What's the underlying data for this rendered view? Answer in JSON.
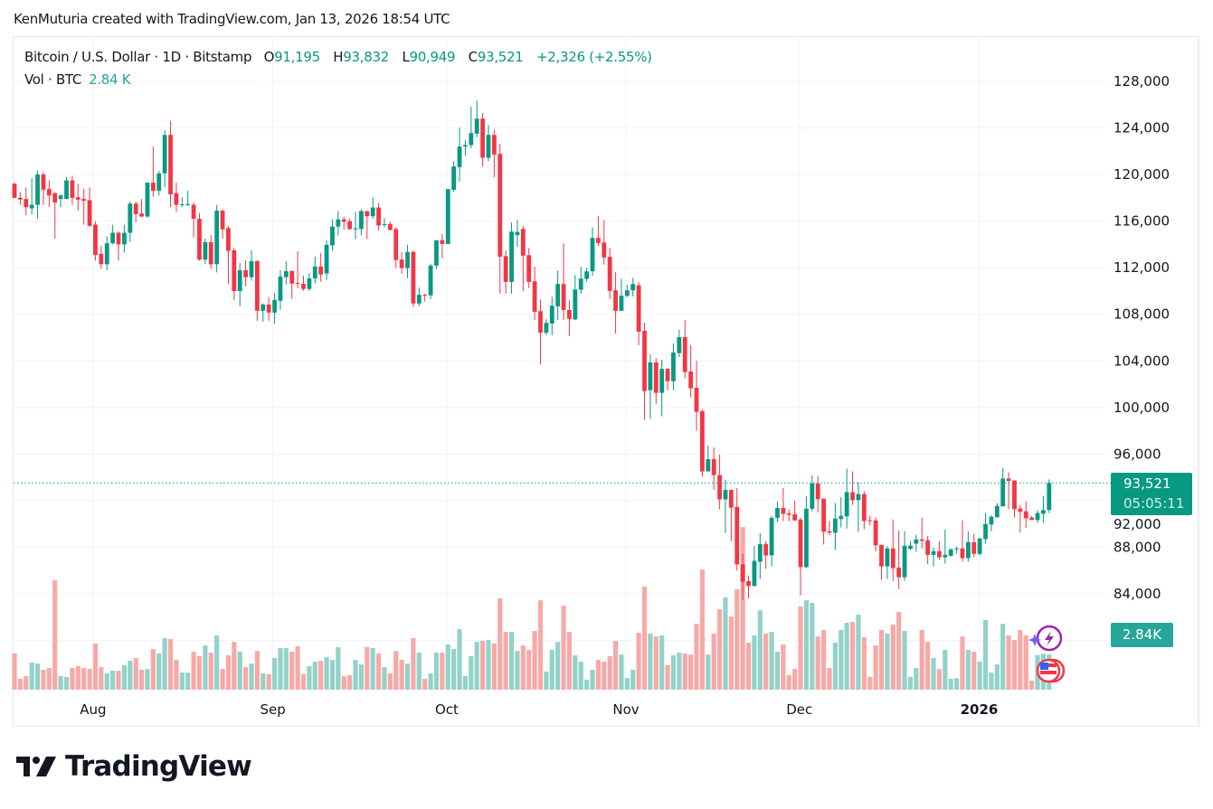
{
  "attribution": "KenMuturia created with TradingView.com, Jan 13, 2026 18:54 UTC",
  "legend": {
    "symbol": "Bitcoin / U.S. Dollar · 1D · Bitstamp",
    "open_label": "O",
    "open": "91,195",
    "high_label": "H",
    "high": "93,832",
    "low_label": "L",
    "low": "90,949",
    "close_label": "C",
    "close": "93,521",
    "change": "+2,326 (+2.55%)",
    "vol_label": "Vol · BTC",
    "vol": "2.84 K"
  },
  "price_scale": {
    "last_price": "93,521",
    "countdown": "05:05:11",
    "last_volume": "2.84K"
  },
  "logo": "TradingView",
  "icons": [
    "lightning-event-icon",
    "us-flag-economic-event-icon"
  ],
  "colors": {
    "up": "#089981",
    "down": "#f23645",
    "volume_up": "#92d2c9",
    "volume_down": "#f7a9a7",
    "grid": "#f0f3fa"
  },
  "chart_data": {
    "type": "candlestick",
    "title": "Bitcoin / U.S. Dollar · 1D · Bitstamp",
    "ylim": [
      80000,
      128000
    ],
    "grid": true,
    "y_ticks": [
      "128,000",
      "124,000",
      "120,000",
      "116,000",
      "112,000",
      "108,000",
      "104,000",
      "100,000",
      "96,000",
      "92,000",
      "88,000",
      "84,000"
    ],
    "x_ticks": [
      {
        "label": "Aug",
        "index": 13.6
      },
      {
        "label": "Sep",
        "index": 44.7
      },
      {
        "label": "Oct",
        "index": 74.8
      },
      {
        "label": "Nov",
        "index": 105.8
      },
      {
        "label": "Dec",
        "index": 135.8
      },
      {
        "label": "2026",
        "index": 166.9,
        "bold": true
      }
    ],
    "columns": [
      "open",
      "high",
      "low",
      "close",
      "volume_k_btc"
    ],
    "candles": [
      [
        119200,
        119300,
        118000,
        118000,
        2.92
      ],
      [
        118000,
        118500,
        117400,
        117850,
        0.88
      ],
      [
        117900,
        118900,
        116500,
        117200,
        1.09
      ],
      [
        117100,
        119700,
        116600,
        117400,
        2.19
      ],
      [
        117400,
        120300,
        116200,
        120000,
        2.11
      ],
      [
        120000,
        120200,
        117400,
        118700,
        1.61
      ],
      [
        118750,
        119500,
        117200,
        118200,
        1.75
      ],
      [
        118400,
        118500,
        114500,
        117600,
        8.83
      ],
      [
        117900,
        118300,
        117200,
        118200,
        1.09
      ],
      [
        117900,
        119800,
        117900,
        119500,
        1.02
      ],
      [
        119500,
        119900,
        117400,
        118000,
        1.75
      ],
      [
        118050,
        119200,
        116900,
        117850,
        1.9
      ],
      [
        117900,
        118800,
        115700,
        117750,
        1.75
      ],
      [
        117800,
        118900,
        115500,
        115600,
        1.67
      ],
      [
        115700,
        116000,
        112600,
        113100,
        3.72
      ],
      [
        113200,
        113900,
        111900,
        112300,
        1.82
      ],
      [
        112300,
        114700,
        111800,
        114100,
        1.31
      ],
      [
        114100,
        115700,
        114000,
        115000,
        1.54
      ],
      [
        115000,
        115100,
        112600,
        114000,
        1.54
      ],
      [
        114000,
        115700,
        113300,
        115000,
        1.98
      ],
      [
        115000,
        117700,
        114200,
        117500,
        2.34
      ],
      [
        117500,
        117700,
        115900,
        116600,
        2.55
      ],
      [
        116650,
        117900,
        116350,
        116400,
        1.61
      ],
      [
        116400,
        119300,
        116300,
        119300,
        1.67
      ],
      [
        119300,
        122400,
        118100,
        118600,
        3.28
      ],
      [
        118600,
        120300,
        118200,
        120100,
        2.92
      ],
      [
        120100,
        123800,
        118900,
        123400,
        4.16
      ],
      [
        123400,
        124600,
        117200,
        118300,
        4.09
      ],
      [
        118400,
        119300,
        116800,
        117400,
        2.4
      ],
      [
        117400,
        118050,
        117200,
        117450,
        1.38
      ],
      [
        117400,
        118600,
        117300,
        117450,
        1.38
      ],
      [
        117400,
        117600,
        114600,
        116200,
        3.07
      ],
      [
        116200,
        116700,
        112600,
        112700,
        2.71
      ],
      [
        112700,
        114500,
        112300,
        114200,
        3.57
      ],
      [
        114200,
        114800,
        111900,
        112300,
        2.99
      ],
      [
        112300,
        117400,
        111600,
        116900,
        4.38
      ],
      [
        116900,
        117000,
        114500,
        115300,
        1.67
      ],
      [
        115400,
        115600,
        110600,
        113450,
        2.77
      ],
      [
        113500,
        113700,
        109240,
        110000,
        3.86
      ],
      [
        110000,
        112400,
        108700,
        111790,
        3.07
      ],
      [
        111790,
        112640,
        110410,
        111190,
        1.82
      ],
      [
        111190,
        113500,
        110880,
        112570,
        2.11
      ],
      [
        112570,
        112640,
        107450,
        108300,
        3.13
      ],
      [
        108300,
        108930,
        107370,
        108850,
        1.31
      ],
      [
        108850,
        109470,
        107450,
        108150,
        1.25
      ],
      [
        108150,
        109840,
        107210,
        109240,
        2.55
      ],
      [
        109160,
        111790,
        108380,
        111240,
        3.36
      ],
      [
        111190,
        112570,
        110560,
        111710,
        3.36
      ],
      [
        111710,
        111790,
        109320,
        110640,
        3.07
      ],
      [
        110700,
        113430,
        110250,
        110640,
        3.5
      ],
      [
        110620,
        111320,
        110020,
        110180,
        1.25
      ],
      [
        110180,
        111550,
        110020,
        111080,
        1.9
      ],
      [
        111080,
        112960,
        110640,
        112100,
        2.26
      ],
      [
        112100,
        113270,
        110800,
        111420,
        2.34
      ],
      [
        111500,
        114360,
        110960,
        113970,
        2.63
      ],
      [
        113920,
        116150,
        113450,
        115530,
        2.4
      ],
      [
        115530,
        116860,
        114780,
        116150,
        3.44
      ],
      [
        116150,
        116390,
        115250,
        115940,
        1.09
      ],
      [
        115990,
        116230,
        115250,
        115320,
        1.17
      ],
      [
        115300,
        116780,
        114460,
        115380,
        2.4
      ],
      [
        115320,
        117000,
        114780,
        116860,
        2.04
      ],
      [
        116860,
        116860,
        114460,
        116420,
        3.44
      ],
      [
        116420,
        118030,
        116210,
        117170,
        3.36
      ],
      [
        117170,
        117560,
        115170,
        115630,
        2.92
      ],
      [
        115690,
        116260,
        115480,
        115740,
        1.82
      ],
      [
        115760,
        115950,
        115170,
        115250,
        1.31
      ],
      [
        115320,
        115480,
        111970,
        112670,
        3.13
      ],
      [
        112700,
        113350,
        111500,
        111970,
        2.4
      ],
      [
        111970,
        113970,
        111110,
        113350,
        2.11
      ],
      [
        113350,
        113500,
        108620,
        108930,
        4.16
      ],
      [
        108930,
        110300,
        108690,
        109680,
        2.99
      ],
      [
        109680,
        109760,
        109080,
        109630,
        0.88
      ],
      [
        109630,
        112330,
        109300,
        112180,
        1.31
      ],
      [
        112180,
        114360,
        111900,
        114360,
        2.99
      ],
      [
        114370,
        114890,
        112800,
        114040,
        2.99
      ],
      [
        114040,
        118750,
        114040,
        118750,
        3.65
      ],
      [
        118690,
        121150,
        118490,
        120690,
        3.28
      ],
      [
        120640,
        124030,
        119400,
        122400,
        4.89
      ],
      [
        122400,
        122960,
        121620,
        122530,
        1.09
      ],
      [
        122530,
        125810,
        122270,
        123560,
        2.71
      ],
      [
        123510,
        126350,
        123200,
        124800,
        3.86
      ],
      [
        124800,
        125270,
        120710,
        121440,
        3.94
      ],
      [
        121440,
        124260,
        121160,
        123405,
        4.01
      ],
      [
        123405,
        123870,
        119780,
        121720,
        3.72
      ],
      [
        121780,
        122630,
        109770,
        112950,
        7.37
      ],
      [
        113000,
        113470,
        109770,
        110780,
        4.67
      ],
      [
        110780,
        115880,
        109770,
        115100,
        4.67
      ],
      [
        114800,
        116110,
        113800,
        115080,
        3.13
      ],
      [
        115330,
        115570,
        109980,
        113030,
        3.57
      ],
      [
        113080,
        113700,
        110240,
        110780,
        3.21
      ],
      [
        110830,
        112070,
        107520,
        108220,
        4.74
      ],
      [
        108270,
        109280,
        103690,
        106430,
        7.22
      ],
      [
        106430,
        107570,
        106200,
        107260,
        1.46
      ],
      [
        107210,
        109510,
        106200,
        108740,
        3.21
      ],
      [
        108690,
        111760,
        107520,
        110600,
        3.86
      ],
      [
        110600,
        114090,
        107520,
        108370,
        6.78
      ],
      [
        108370,
        109200,
        106120,
        107600,
        4.67
      ],
      [
        107560,
        111370,
        107520,
        110130,
        2.77
      ],
      [
        110110,
        112070,
        109770,
        111060,
        2.26
      ],
      [
        111040,
        111990,
        110780,
        111690,
        0.81
      ],
      [
        111690,
        115490,
        111320,
        114560,
        1.61
      ],
      [
        114560,
        116420,
        113880,
        114120,
        2.4
      ],
      [
        114170,
        116110,
        112260,
        112880,
        2.26
      ],
      [
        112930,
        113700,
        109310,
        110010,
        2.71
      ],
      [
        110060,
        111610,
        106360,
        108300,
        3.94
      ],
      [
        108300,
        111060,
        108300,
        109590,
        2.84
      ],
      [
        109590,
        110520,
        109460,
        110060,
        0.94
      ],
      [
        110060,
        111140,
        109540,
        110600,
        1.61
      ],
      [
        110500,
        110760,
        105350,
        106510,
        4.59
      ],
      [
        106580,
        107280,
        98930,
        101410,
        8.31
      ],
      [
        101490,
        104560,
        99010,
        103870,
        4.53
      ],
      [
        103870,
        104250,
        100330,
        101260,
        4.3
      ],
      [
        101260,
        104100,
        99240,
        103320,
        4.38
      ],
      [
        103320,
        103400,
        101490,
        102260,
        1.98
      ],
      [
        102260,
        105490,
        101490,
        104720,
        2.77
      ],
      [
        104670,
        106660,
        104330,
        106040,
        2.99
      ],
      [
        106040,
        107510,
        102500,
        103040,
        2.92
      ],
      [
        103090,
        105340,
        100870,
        101640,
        2.84
      ],
      [
        101690,
        104020,
        97990,
        99630,
        5.32
      ],
      [
        99680,
        99840,
        94050,
        94510,
        9.7
      ],
      [
        94510,
        96730,
        94510,
        95570,
        2.84
      ],
      [
        95570,
        96580,
        92960,
        94200,
        4.53
      ],
      [
        94200,
        95960,
        91260,
        92110,
        6.49
      ],
      [
        92110,
        93790,
        89240,
        92930,
        7.45
      ],
      [
        92930,
        92930,
        88540,
        91410,
        5.91
      ],
      [
        91460,
        93090,
        85980,
        86530,
        8.1
      ],
      [
        86530,
        87430,
        83500,
        85050,
        13.13
      ],
      [
        85100,
        85570,
        83600,
        84670,
        3.8
      ],
      [
        84670,
        88130,
        84670,
        86840,
        4.38
      ],
      [
        86760,
        89210,
        85290,
        88280,
        6.41
      ],
      [
        88280,
        88520,
        86140,
        87300,
        4.53
      ],
      [
        87300,
        90690,
        86370,
        90530,
        4.67
      ],
      [
        90530,
        91930,
        90170,
        91380,
        3.07
      ],
      [
        91380,
        93090,
        90250,
        90870,
        3.65
      ],
      [
        90920,
        91260,
        90250,
        90790,
        1.17
      ],
      [
        90840,
        92010,
        90250,
        90320,
        1.67
      ],
      [
        90380,
        90530,
        83870,
        86300,
        6.72
      ],
      [
        86300,
        92390,
        86220,
        91310,
        7.22
      ],
      [
        91310,
        94180,
        91100,
        93480,
        7.01
      ],
      [
        93480,
        94130,
        90990,
        92130,
        4.3
      ],
      [
        92180,
        92180,
        88240,
        89330,
        4.82
      ],
      [
        89380,
        90290,
        89040,
        89250,
        1.75
      ],
      [
        89250,
        91790,
        87770,
        90470,
        3.8
      ],
      [
        90420,
        92310,
        89690,
        90700,
        4.82
      ],
      [
        90650,
        94750,
        89610,
        92730,
        5.4
      ],
      [
        92730,
        94520,
        91640,
        92050,
        5.47
      ],
      [
        92050,
        93580,
        89330,
        92570,
        6.05
      ],
      [
        92570,
        92810,
        89560,
        90260,
        4.23
      ],
      [
        90320,
        90700,
        89900,
        90260,
        1.02
      ],
      [
        90310,
        90550,
        87640,
        88160,
        3.57
      ],
      [
        88210,
        88210,
        85200,
        86360,
        4.82
      ],
      [
        86360,
        88080,
        85280,
        87900,
        4.53
      ],
      [
        87900,
        90390,
        85120,
        86210,
        5.26
      ],
      [
        86260,
        89460,
        84420,
        85430,
        6.28
      ],
      [
        85430,
        89380,
        85120,
        88130,
        4.74
      ],
      [
        87860,
        88540,
        87770,
        88140,
        1.02
      ],
      [
        88310,
        89070,
        87610,
        88680,
        1.75
      ],
      [
        88680,
        90550,
        87900,
        88550,
        4.82
      ],
      [
        88600,
        88990,
        86570,
        87350,
        3.86
      ],
      [
        87350,
        87980,
        86360,
        87660,
        2.55
      ],
      [
        87660,
        88520,
        86910,
        87140,
        1.67
      ],
      [
        87140,
        89530,
        86600,
        87350,
        3.21
      ],
      [
        87270,
        87900,
        87220,
        87820,
        0.88
      ],
      [
        87860,
        88050,
        87460,
        87900,
        0.94
      ],
      [
        87900,
        90310,
        86760,
        87070,
        4.3
      ],
      [
        87070,
        89380,
        86760,
        88440,
        3.21
      ],
      [
        88440,
        89140,
        87140,
        87430,
        3.07
      ],
      [
        87430,
        88830,
        87300,
        88750,
        2.26
      ],
      [
        88700,
        90940,
        88310,
        90000,
        5.62
      ],
      [
        89950,
        90750,
        89380,
        90620,
        1.38
      ],
      [
        90570,
        91790,
        90570,
        91560,
        2.04
      ],
      [
        91510,
        94830,
        91510,
        93900,
        5.32
      ],
      [
        93900,
        94440,
        91270,
        93690,
        4.38
      ],
      [
        93740,
        93740,
        90570,
        91270,
        4.01
      ],
      [
        91330,
        91640,
        89250,
        91040,
        4.82
      ],
      [
        91090,
        91950,
        89640,
        90490,
        4.38
      ],
      [
        90550,
        90700,
        90340,
        90340,
        0.73
      ],
      [
        90340,
        91170,
        90100,
        90940,
        2.8
      ],
      [
        90880,
        92420,
        90100,
        91195,
        2.9
      ],
      [
        91195,
        93832,
        90949,
        93521,
        2.84
      ]
    ],
    "last_price": 93521
  }
}
